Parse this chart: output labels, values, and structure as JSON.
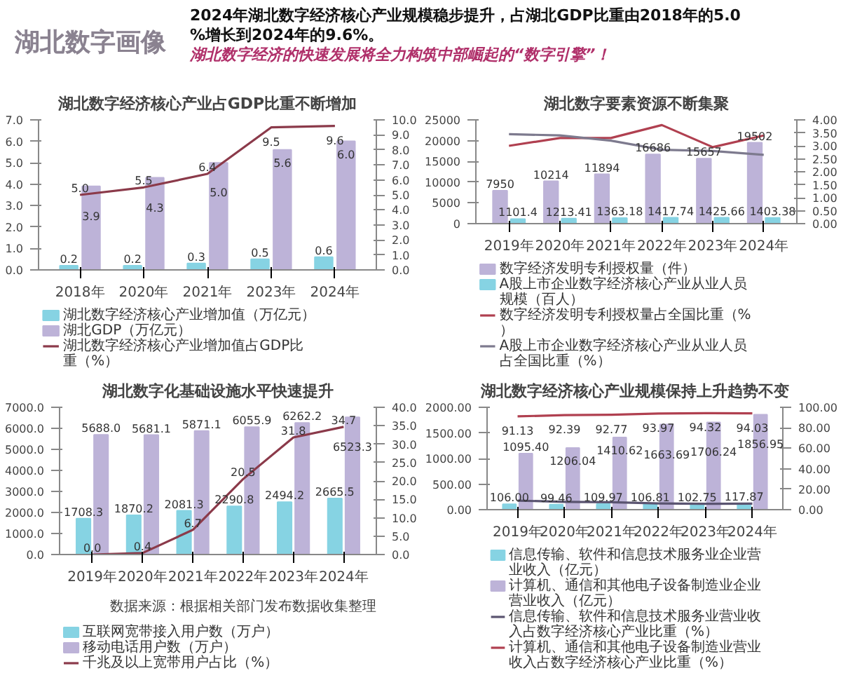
{
  "chart_data": [
    {
      "type": "other",
      "title": "湖北数字画像",
      "annotations": [
        "2024年湖北数字经济核心产业规模稳步提升，占湖北GDP比重由2018年的5.0%增长到2024年的9.6%。",
        "湖北数字经济的快速发展将全力构筑中部崛起的“数字引擎”！"
      ]
    },
    {
      "type": "bar",
      "title": "湖北数字经济核心产业占GDP比重不断增加",
      "categories": [
        "2018年",
        "2020年",
        "2021年",
        "2023年",
        "2024年"
      ],
      "ylim": [
        0,
        7
      ],
      "yticks": [
        {
          "value": 0,
          "label": "0.0"
        },
        {
          "value": 1,
          "label": "1.0"
        },
        {
          "value": 2,
          "label": "2.0"
        },
        {
          "value": 3,
          "label": "3.0"
        },
        {
          "value": 4,
          "label": "4.0"
        },
        {
          "value": 5,
          "label": "5.0"
        },
        {
          "value": 6,
          "label": "6.0"
        },
        {
          "value": 7,
          "label": "7.0"
        }
      ],
      "y2lim": [
        0,
        10
      ],
      "y2ticks": [
        {
          "value": 0,
          "label": "0.0"
        },
        {
          "value": 1,
          "label": "1.0"
        },
        {
          "value": 2,
          "label": "2.0"
        },
        {
          "value": 3,
          "label": "3.0"
        },
        {
          "value": 4,
          "label": "4.0"
        },
        {
          "value": 5,
          "label": "5.0"
        },
        {
          "value": 6,
          "label": "6.0"
        },
        {
          "value": 7,
          "label": "7.0"
        },
        {
          "value": 8,
          "label": "8.0"
        },
        {
          "value": 9,
          "label": "9.0"
        },
        {
          "value": 10,
          "label": "10.0"
        }
      ],
      "grid": false,
      "legend": "bottom",
      "series": [
        {
          "name": "湖北数字经济核心产业增加值（万亿元）",
          "color": "#86d3e3",
          "values": [
            0.2,
            0.2,
            0.3,
            0.5,
            0.6
          ],
          "value_labels": [
            "0.2",
            "0.2",
            "0.3",
            "0.5",
            "0.6"
          ]
        },
        {
          "name": "湖北GDP（万亿元）",
          "color": "#bdb3d8",
          "values": [
            3.9,
            4.3,
            5.0,
            5.6,
            6.0
          ],
          "value_labels": [
            "3.9",
            "4.3",
            "5.0",
            "5.6",
            "6.0"
          ]
        },
        {
          "name": "湖北数字经济核心产业增加值占GDP比重（%）",
          "type": "line",
          "axis": "y2",
          "color": "#8b3a4a",
          "values": [
            5.0,
            5.5,
            6.4,
            9.5,
            9.6
          ],
          "value_labels": [
            "5.0",
            "5.5",
            "6.4",
            "9.5",
            "9.6"
          ]
        }
      ]
    },
    {
      "type": "bar",
      "title": "湖北数字要素资源不断集聚",
      "categories": [
        "2019年",
        "2020年",
        "2021年",
        "2022年",
        "2023年",
        "2024年"
      ],
      "ylim": [
        0,
        25000
      ],
      "yticks": [
        0,
        5000,
        10000,
        15000,
        20000,
        25000
      ],
      "y2lim": [
        0,
        4
      ],
      "y2ticks": [
        {
          "value": 0,
          "label": "0.00"
        },
        {
          "value": 0.5,
          "label": "0.50"
        },
        {
          "value": 1,
          "label": "1.00"
        },
        {
          "value": 1.5,
          "label": "1.50"
        },
        {
          "value": 2,
          "label": "2.00"
        },
        {
          "value": 2.5,
          "label": "2.50"
        },
        {
          "value": 3,
          "label": "3.00"
        },
        {
          "value": 3.5,
          "label": "3.50"
        },
        {
          "value": 4,
          "label": "4.00"
        }
      ],
      "grid": false,
      "legend": "bottom",
      "series": [
        {
          "name": "数字经济发明专利授权量（件）",
          "color": "#bdb3d8",
          "values": [
            7950,
            10214,
            11894,
            16686,
            15657,
            19502
          ],
          "value_labels": [
            "7950",
            "10214",
            "11894",
            "16686",
            "15657",
            "19502"
          ]
        },
        {
          "name": "A股上市企业数字经济核心产业从业人员规模（百人）",
          "color": "#86d3e3",
          "values": [
            1101.4,
            1213.41,
            1363.18,
            1417.74,
            1425.66,
            1403.38
          ],
          "value_labels": [
            "1101.4",
            "1213.41",
            "1363.18",
            "1417.74",
            "1425.66",
            "1403.38"
          ]
        },
        {
          "name": "数字经济发明专利授权量占全国比重（%）",
          "type": "line",
          "axis": "y2",
          "color": "#b04050",
          "values": [
            3.0,
            3.3,
            3.3,
            3.8,
            2.95,
            3.4
          ]
        },
        {
          "name": "A股上市企业数字经济核心产业从业人员占全国比重（%）",
          "type": "line",
          "axis": "y2",
          "color": "#7d7a8e",
          "values": [
            3.45,
            3.4,
            3.2,
            2.85,
            2.8,
            2.65
          ]
        }
      ]
    },
    {
      "type": "bar",
      "title": "湖北数字化基础设施水平快速提升",
      "categories": [
        "2019年",
        "2020年",
        "2021年",
        "2022年",
        "2023年",
        "2024年"
      ],
      "ylim": [
        0,
        7000
      ],
      "yticks": [
        {
          "value": 0,
          "label": "0.0"
        },
        {
          "value": 1000,
          "label": "1000.0"
        },
        {
          "value": 2000,
          "label": "2000.0"
        },
        {
          "value": 3000,
          "label": "3000.0"
        },
        {
          "value": 4000,
          "label": "4000.0"
        },
        {
          "value": 5000,
          "label": "5000.0"
        },
        {
          "value": 6000,
          "label": "6000.0"
        },
        {
          "value": 7000,
          "label": "7000.0"
        }
      ],
      "y2lim": [
        0,
        40
      ],
      "y2ticks": [
        {
          "value": 0,
          "label": "0.0"
        },
        {
          "value": 5,
          "label": "5.0"
        },
        {
          "value": 10,
          "label": "10.0"
        },
        {
          "value": 15,
          "label": "15.0"
        },
        {
          "value": 20,
          "label": "20.0"
        },
        {
          "value": 25,
          "label": "25.0"
        },
        {
          "value": 30,
          "label": "30.0"
        },
        {
          "value": 35,
          "label": "35.0"
        },
        {
          "value": 40,
          "label": "40.0"
        }
      ],
      "grid": false,
      "legend": "bottom",
      "annotations": [
        "数据来源：根据相关部门发布数据收集整理"
      ],
      "series": [
        {
          "name": "互联网宽带接入用户数（万户）",
          "color": "#86d3e3",
          "values": [
            1708.3,
            1870.2,
            2081.3,
            2290.8,
            2494.2,
            2665.5
          ],
          "value_labels": [
            "1708.3",
            "1870.2",
            "2081.3",
            "2290.8",
            "2494.2",
            "2665.5"
          ]
        },
        {
          "name": "移动电话用户数（万户）",
          "color": "#bdb3d8",
          "values": [
            5688.0,
            5681.1,
            5871.1,
            6055.9,
            6262.2,
            6523.3
          ],
          "value_labels": [
            "5688.0",
            "5681.1",
            "5871.1",
            "6055.9",
            "6262.2",
            "6523.3"
          ]
        },
        {
          "name": "千兆及以上宽带用户占比（%）",
          "type": "line",
          "axis": "y2",
          "color": "#8b3a4a",
          "values": [
            0.0,
            0.4,
            6.7,
            20.5,
            31.8,
            34.7
          ],
          "value_labels": [
            "0.0",
            "0.4",
            "6.7",
            "20.5",
            "31.8",
            "34.7"
          ]
        }
      ]
    },
    {
      "type": "bar",
      "title": "湖北数字经济核心产业规模保持上升趋势不变",
      "categories": [
        "2019年",
        "2020年",
        "2021年",
        "2022年",
        "2023年",
        "2024年"
      ],
      "ylim": [
        0,
        2000
      ],
      "yticks": [
        {
          "value": 0,
          "label": "0.00"
        },
        {
          "value": 500,
          "label": "500.00"
        },
        {
          "value": 1000,
          "label": "1000.00"
        },
        {
          "value": 1500,
          "label": "1500.00"
        },
        {
          "value": 2000,
          "label": "2000.00"
        }
      ],
      "y2lim": [
        0,
        100
      ],
      "y2ticks": [
        {
          "value": 0,
          "label": "0.00"
        },
        {
          "value": 20,
          "label": "20.00"
        },
        {
          "value": 40,
          "label": "40.00"
        },
        {
          "value": 60,
          "label": "60.00"
        },
        {
          "value": 80,
          "label": "80.00"
        },
        {
          "value": 100,
          "label": "100.00"
        }
      ],
      "grid": false,
      "legend": "bottom",
      "series": [
        {
          "name": "信息传输、软件和信息技术服务业企业营业收入（亿元）",
          "color": "#86d3e3",
          "values": [
            106.0,
            99.46,
            109.97,
            106.81,
            102.75,
            117.87
          ],
          "value_labels": [
            "106.00",
            "99.46",
            "109.97",
            "106.81",
            "102.75",
            "117.87"
          ]
        },
        {
          "name": "计算机、通信和其他电子设备制造业企业营业收入（亿元）",
          "color": "#bdb3d8",
          "values": [
            1095.4,
            1206.04,
            1410.62,
            1663.69,
            1706.24,
            1856.95
          ],
          "value_labels": [
            "1095.40",
            "1206.04",
            "1410.62",
            "1663.69",
            "1706.24",
            "1856.95"
          ]
        },
        {
          "name": "信息传输、软件和信息技术服务业营业收入占数字经济核心产业比重（%）",
          "type": "line",
          "axis": "y2",
          "color": "#5a5470",
          "values": [
            8.87,
            7.61,
            7.23,
            6.03,
            5.68,
            5.97
          ]
        },
        {
          "name": "计算机、通信和其他电子设备制造业营业收入占数字经济核心产业比重（%）",
          "type": "line",
          "axis": "y2",
          "color": "#b04050",
          "values": [
            91.13,
            92.39,
            92.77,
            93.97,
            94.32,
            94.03
          ],
          "value_labels": [
            "91.13",
            "92.39",
            "92.77",
            "93.97",
            "94.32",
            "94.03"
          ]
        }
      ]
    }
  ]
}
